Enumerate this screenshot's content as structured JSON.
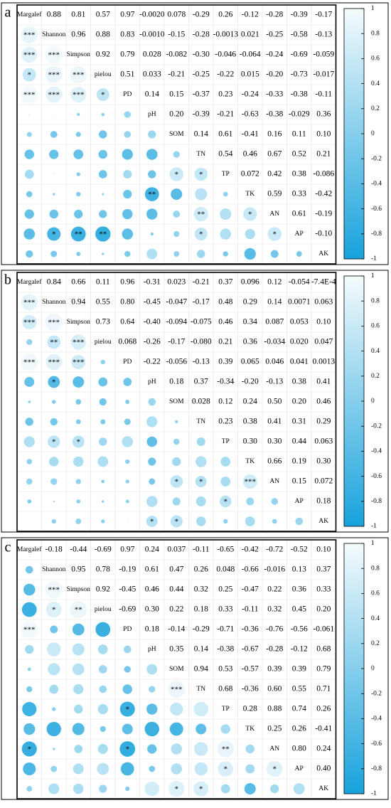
{
  "chart_data": [
    {
      "type": "corrplot",
      "label": "a",
      "variables": [
        "Margalef",
        "Shannon",
        "Simpson",
        "pielou",
        "PD",
        "pH",
        "SOM",
        "TN",
        "TP",
        "TK",
        "AN",
        "AP",
        "AK"
      ],
      "values": [
        [
          0.88,
          0.81,
          0.57,
          0.97,
          -0.002,
          0.078,
          -0.29,
          0.26,
          -0.12,
          -0.28,
          -0.39,
          -0.17
        ],
        [
          0.96,
          0.88,
          0.83,
          -0.001,
          -0.15,
          -0.28,
          -0.0013,
          0.021,
          -0.25,
          -0.58,
          -0.13
        ],
        [
          0.92,
          0.79,
          0.028,
          -0.082,
          -0.3,
          -0.046,
          -0.064,
          -0.24,
          -0.69,
          -0.059
        ],
        [
          0.51,
          0.033,
          -0.21,
          -0.25,
          -0.22,
          0.015,
          -0.2,
          -0.73,
          -0.017
        ],
        [
          0.14,
          0.15,
          -0.37,
          0.23,
          -0.24,
          -0.33,
          -0.38,
          -0.11
        ],
        [
          0.2,
          -0.39,
          -0.21,
          -0.63,
          -0.38,
          -0.029,
          0.36
        ],
        [
          0.14,
          0.61,
          -0.41,
          0.16,
          0.11,
          0.1
        ],
        [
          0.54,
          0.46,
          0.67,
          0.52,
          0.21
        ],
        [
          0.072,
          0.42,
          0.38,
          -0.086
        ],
        [
          0.59,
          0.33,
          -0.42
        ],
        [
          0.61,
          -0.19
        ],
        [
          -0.1
        ]
      ],
      "value_labels": [
        [
          "0.88",
          "0.81",
          "0.57",
          "0.97",
          "-0.0020",
          "0.078",
          "-0.29",
          "0.26",
          "-0.12",
          "-0.28",
          "-0.39",
          "-0.17"
        ],
        [
          "0.96",
          "0.88",
          "0.83",
          "-0.0010",
          "-0.15",
          "-0.28",
          "-0.0013",
          "0.021",
          "-0.25",
          "-0.58",
          "-0.13"
        ],
        [
          "0.92",
          "0.79",
          "0.028",
          "-0.082",
          "-0.30",
          "-0.046",
          "-0.064",
          "-0.24",
          "-0.69",
          "-0.059"
        ],
        [
          "0.51",
          "0.033",
          "-0.21",
          "-0.25",
          "-0.22",
          "0.015",
          "-0.20",
          "-0.73",
          "-0.017"
        ],
        [
          "0.14",
          "0.15",
          "-0.37",
          "0.23",
          "-0.24",
          "-0.33",
          "-0.38",
          "-0.11"
        ],
        [
          "0.20",
          "-0.39",
          "-0.21",
          "-0.63",
          "-0.38",
          "-0.029",
          "0.36"
        ],
        [
          "0.14",
          "0.61",
          "-0.41",
          "0.16",
          "0.11",
          "0.10"
        ],
        [
          "0.54",
          "0.46",
          "0.67",
          "0.52",
          "0.21"
        ],
        [
          "0.072",
          "0.42",
          "0.38",
          "-0.086"
        ],
        [
          "0.59",
          "0.33",
          "-0.42"
        ],
        [
          "0.61",
          "-0.19"
        ],
        [
          "-0.10"
        ]
      ],
      "stars": [
        [
          "***"
        ],
        [
          "***",
          "***"
        ],
        [
          "*",
          "***",
          "***"
        ],
        [
          "***",
          "***",
          "***",
          "*"
        ],
        [
          null,
          null,
          null,
          null,
          null
        ],
        [
          null,
          null,
          null,
          null,
          null,
          null
        ],
        [
          null,
          null,
          null,
          null,
          null,
          null,
          null
        ],
        [
          null,
          null,
          null,
          null,
          null,
          null,
          "*",
          "*"
        ],
        [
          null,
          null,
          null,
          null,
          null,
          "**",
          null,
          null,
          null
        ],
        [
          null,
          null,
          null,
          null,
          null,
          null,
          null,
          "**",
          null,
          "*"
        ],
        [
          null,
          "*",
          "**",
          "**",
          null,
          null,
          null,
          "*",
          null,
          null,
          "*"
        ],
        [
          null,
          null,
          null,
          null,
          null,
          null,
          null,
          null,
          null,
          null,
          null,
          null
        ]
      ],
      "colormap": [
        "#17a2dc",
        "#f5fbfd"
      ],
      "clim": [
        -1,
        1
      ],
      "colorbar_ticks": [
        1,
        0.8,
        0.6,
        0.4,
        0.2,
        0,
        -0.2,
        -0.4,
        -0.6,
        -0.8,
        -1
      ]
    },
    {
      "type": "corrplot",
      "label": "b",
      "variables": [
        "Margalef",
        "Shannon",
        "Simpson",
        "pielou",
        "PD",
        "pH",
        "SOM",
        "TN",
        "TP",
        "TK",
        "AN",
        "AP",
        "AK"
      ],
      "values": [
        [
          0.84,
          0.66,
          0.11,
          0.96,
          -0.31,
          0.023,
          -0.21,
          0.37,
          0.096,
          0.12,
          -0.054,
          -0.00074
        ],
        [
          0.94,
          0.55,
          0.8,
          -0.45,
          -0.047,
          -0.17,
          0.48,
          0.29,
          0.14,
          0.0071,
          0.063
        ],
        [
          0.73,
          0.64,
          -0.4,
          -0.094,
          -0.075,
          0.46,
          0.34,
          0.087,
          0.053,
          0.1
        ],
        [
          0.068,
          -0.26,
          -0.17,
          -0.08,
          0.21,
          0.36,
          -0.034,
          0.02,
          0.047
        ],
        [
          -0.22,
          -0.056,
          -0.13,
          0.39,
          0.065,
          0.046,
          0.041,
          0.0013
        ],
        [
          0.18,
          0.37,
          -0.34,
          -0.2,
          -0.13,
          0.38,
          0.41
        ],
        [
          0.028,
          0.12,
          0.24,
          0.5,
          0.2,
          0.46
        ],
        [
          0.23,
          0.38,
          0.41,
          0.31,
          0.29
        ],
        [
          0.3,
          0.3,
          0.44,
          0.063
        ],
        [
          0.66,
          0.19,
          0.3
        ],
        [
          0.15,
          0.072
        ],
        [
          0.18
        ]
      ],
      "value_labels": [
        [
          "0.84",
          "0.66",
          "0.11",
          "0.96",
          "-0.31",
          "0.023",
          "-0.21",
          "0.37",
          "0.096",
          "0.12",
          "-0.054",
          "-7.4E-4"
        ],
        [
          "0.94",
          "0.55",
          "0.80",
          "-0.45",
          "-0.047",
          "-0.17",
          "0.48",
          "0.29",
          "0.14",
          "0.0071",
          "0.063"
        ],
        [
          "0.73",
          "0.64",
          "-0.40",
          "-0.094",
          "-0.075",
          "0.46",
          "0.34",
          "0.087",
          "0.053",
          "0.10"
        ],
        [
          "0.068",
          "-0.26",
          "-0.17",
          "-0.080",
          "0.21",
          "0.36",
          "-0.034",
          "0.020",
          "0.047"
        ],
        [
          "-0.22",
          "-0.056",
          "-0.13",
          "0.39",
          "0.065",
          "0.046",
          "0.041",
          "0.0013"
        ],
        [
          "0.18",
          "0.37",
          "-0.34",
          "-0.20",
          "-0.13",
          "0.38",
          "0.41"
        ],
        [
          "0.028",
          "0.12",
          "0.24",
          "0.50",
          "0.20",
          "0.46"
        ],
        [
          "0.23",
          "0.38",
          "0.41",
          "0.31",
          "0.29"
        ],
        [
          "0.30",
          "0.30",
          "0.44",
          "0.063"
        ],
        [
          "0.66",
          "0.19",
          "0.30"
        ],
        [
          "0.15",
          "0.072"
        ],
        [
          "0.18"
        ]
      ],
      "stars": [
        [
          "***"
        ],
        [
          "***",
          "***"
        ],
        [
          null,
          "**",
          "***"
        ],
        [
          "***",
          "***",
          "***",
          null
        ],
        [
          null,
          "*",
          null,
          null,
          null
        ],
        [
          null,
          null,
          null,
          null,
          null,
          null
        ],
        [
          null,
          null,
          null,
          null,
          null,
          null,
          null
        ],
        [
          null,
          "*",
          "*",
          null,
          null,
          null,
          null,
          null
        ],
        [
          null,
          null,
          null,
          null,
          null,
          null,
          null,
          null,
          null
        ],
        [
          null,
          null,
          null,
          null,
          null,
          null,
          "*",
          "*",
          null,
          "***"
        ],
        [
          null,
          null,
          null,
          null,
          null,
          null,
          null,
          null,
          "*",
          null,
          null
        ],
        [
          null,
          null,
          null,
          null,
          null,
          "*",
          "*",
          null,
          null,
          null,
          null,
          null
        ]
      ],
      "colormap": [
        "#17a2dc",
        "#f5fbfd"
      ],
      "clim": [
        -1,
        1
      ],
      "colorbar_ticks": [
        1,
        0.8,
        0.6,
        0.4,
        0.2,
        0,
        -0.2,
        -0.4,
        -0.6,
        -0.8,
        -1
      ]
    },
    {
      "type": "corrplot",
      "label": "c",
      "variables": [
        "Margalef",
        "Shannon",
        "Simpson",
        "pielou",
        "PD",
        "pH",
        "SOM",
        "TN",
        "TP",
        "TK",
        "AN",
        "AP",
        "AK"
      ],
      "values": [
        [
          -0.18,
          -0.44,
          -0.69,
          0.97,
          0.24,
          0.037,
          -0.11,
          -0.65,
          -0.42,
          -0.72,
          -0.52,
          0.1
        ],
        [
          0.95,
          0.78,
          -0.19,
          0.61,
          0.47,
          0.26,
          0.048,
          -0.66,
          -0.016,
          0.13,
          0.37
        ],
        [
          0.92,
          -0.45,
          0.46,
          0.44,
          0.32,
          0.25,
          -0.47,
          0.22,
          0.36,
          0.33
        ],
        [
          -0.69,
          0.3,
          0.22,
          0.18,
          0.33,
          -0.11,
          0.32,
          0.45,
          0.2
        ],
        [
          0.18,
          -0.14,
          -0.29,
          -0.71,
          -0.36,
          -0.76,
          -0.56,
          -0.061
        ],
        [
          0.35,
          0.14,
          -0.38,
          -0.67,
          -0.28,
          -0.12,
          0.68
        ],
        [
          0.94,
          0.53,
          -0.57,
          0.39,
          0.39,
          0.79
        ],
        [
          0.68,
          -0.36,
          0.6,
          0.55,
          0.71
        ],
        [
          0.28,
          0.88,
          0.74,
          0.26
        ],
        [
          0.25,
          0.26,
          -0.41
        ],
        [
          0.8,
          0.24
        ],
        [
          0.4
        ]
      ],
      "value_labels": [
        [
          "-0.18",
          "-0.44",
          "-0.69",
          "0.97",
          "0.24",
          "0.037",
          "-0.11",
          "-0.65",
          "-0.42",
          "-0.72",
          "-0.52",
          "0.10"
        ],
        [
          "0.95",
          "0.78",
          "-0.19",
          "0.61",
          "0.47",
          "0.26",
          "0.048",
          "-0.66",
          "-0.016",
          "0.13",
          "0.37"
        ],
        [
          "0.92",
          "-0.45",
          "0.46",
          "0.44",
          "0.32",
          "0.25",
          "-0.47",
          "0.22",
          "0.36",
          "0.33"
        ],
        [
          "-0.69",
          "0.30",
          "0.22",
          "0.18",
          "0.33",
          "-0.11",
          "0.32",
          "0.45",
          "0.20"
        ],
        [
          "0.18",
          "-0.14",
          "-0.29",
          "-0.71",
          "-0.36",
          "-0.76",
          "-0.56",
          "-0.061"
        ],
        [
          "0.35",
          "0.14",
          "-0.38",
          "-0.67",
          "-0.28",
          "-0.12",
          "0.68"
        ],
        [
          "0.94",
          "0.53",
          "-0.57",
          "0.39",
          "0.39",
          "0.79"
        ],
        [
          "0.68",
          "-0.36",
          "0.60",
          "0.55",
          "0.71"
        ],
        [
          "0.28",
          "0.88",
          "0.74",
          "0.26"
        ],
        [
          "0.25",
          "0.26",
          "-0.41"
        ],
        [
          "0.80",
          "0.24"
        ],
        [
          "0.40"
        ]
      ],
      "stars": [
        [
          null
        ],
        [
          null,
          "***"
        ],
        [
          null,
          "*",
          "**"
        ],
        [
          "***",
          null,
          null,
          null
        ],
        [
          null,
          null,
          null,
          null,
          null
        ],
        [
          null,
          null,
          null,
          null,
          null,
          null
        ],
        [
          null,
          null,
          null,
          null,
          null,
          null,
          "***"
        ],
        [
          null,
          null,
          null,
          null,
          "*",
          null,
          null,
          null
        ],
        [
          null,
          null,
          null,
          null,
          null,
          null,
          null,
          null,
          null
        ],
        [
          "*",
          null,
          null,
          null,
          "*",
          null,
          null,
          null,
          "**",
          null
        ],
        [
          null,
          null,
          null,
          null,
          null,
          null,
          null,
          null,
          "*",
          null,
          "*"
        ],
        [
          null,
          null,
          null,
          null,
          null,
          null,
          "*",
          "*",
          null,
          null,
          null,
          null
        ]
      ],
      "colormap": [
        "#17a2dc",
        "#f5fbfd"
      ],
      "clim": [
        -1,
        1
      ],
      "colorbar_ticks": [
        1,
        0.8,
        0.6,
        0.4,
        0.2,
        0,
        -0.2,
        -0.4,
        -0.6,
        -0.8,
        -1
      ]
    }
  ]
}
